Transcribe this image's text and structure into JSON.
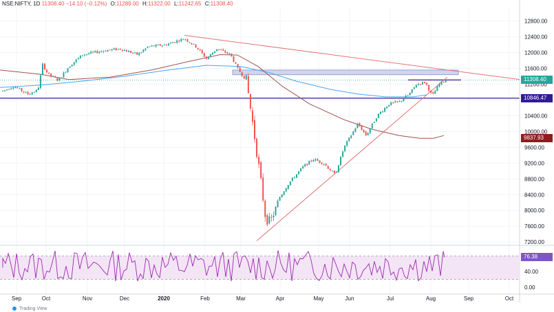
{
  "header": {
    "symbol": "NSE:NIFTY, 1D",
    "last": "11308.40",
    "change": "−14.10 (−0.12%)",
    "o_label": "O:",
    "o": "11289.00",
    "h_label": "H:",
    "h": "11322.00",
    "l_label": "L:",
    "l": "11242.65",
    "c_label": "C:",
    "c": "11308.40"
  },
  "price_tags": {
    "last": "11308.40",
    "support": "10846.47",
    "ma": "9837.93",
    "rsi": "76.38"
  },
  "colors": {
    "up": "#26a69a",
    "down": "#ef5350",
    "support_line": "#311b92",
    "trend_line": "#e57373",
    "ma_fast": "#42a5f5",
    "ma_slow": "#a1504a",
    "rsi_line": "#9c27b0",
    "rsi_band": "#f3e5f5",
    "resistance_box": "#c5cae9",
    "last_price_tag": "#26a69a",
    "support_tag": "#311b92",
    "ma_tag": "#8b1f1f",
    "rsi_tag": "#7e57c2"
  },
  "footer": {
    "text": "Trading View"
  },
  "chart_data": {
    "type": "candlestick",
    "price_axis": {
      "ticks": [
        "12800.00",
        "12400.00",
        "12000.00",
        "11600.00",
        "11200.00",
        "10800.00",
        "10400.00",
        "10000.00",
        "9600.00",
        "9200.00",
        "8800.00",
        "8400.00",
        "8000.00",
        "7600.00",
        "7200.00"
      ],
      "range": [
        7150,
        12900
      ]
    },
    "time_axis": {
      "labels": [
        "Sep",
        "Oct",
        "Nov",
        "Dec",
        "2020",
        "Feb",
        "Mar",
        "Apr",
        "May",
        "Jun",
        "Jul",
        "Aug",
        "Sep",
        "Oct"
      ],
      "emphasized": "2020"
    },
    "rsi_axis": {
      "ticks": [
        "80.00",
        "40.00",
        "0.00"
      ],
      "range": [
        0,
        100
      ],
      "band": [
        20,
        80
      ]
    },
    "last_price": 11308.4,
    "support_level": 10846.47,
    "ma_value": 9837.93,
    "rsi_value": 76.38,
    "resistance_zone": [
      11460,
      11520
    ]
  }
}
